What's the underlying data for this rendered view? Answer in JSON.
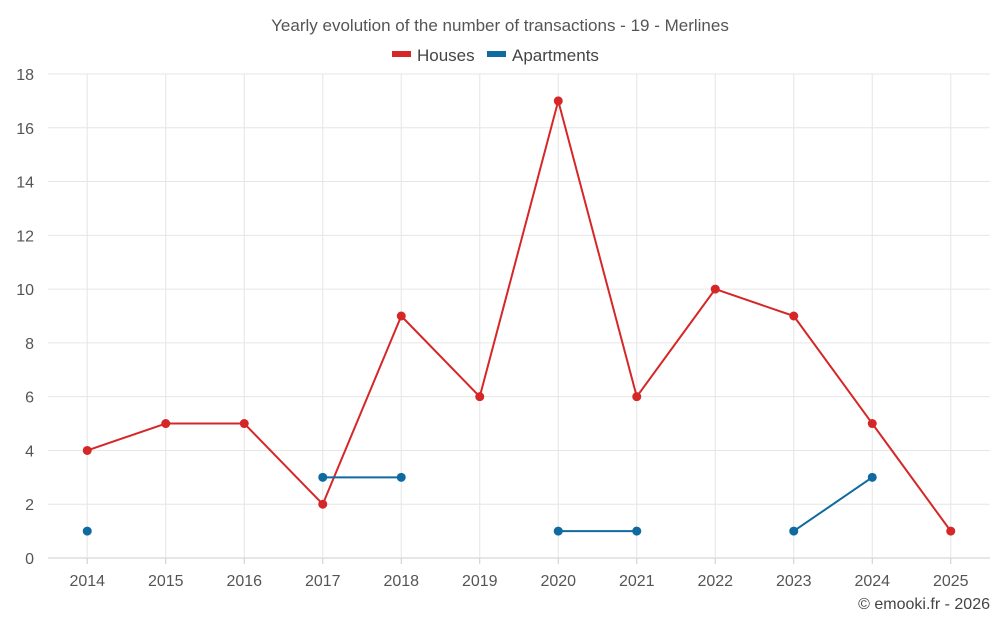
{
  "chart_data": {
    "type": "line",
    "title": "Yearly evolution of the number of transactions - 19 - Merlines",
    "categories": [
      "2014",
      "2015",
      "2016",
      "2017",
      "2018",
      "2019",
      "2020",
      "2021",
      "2022",
      "2023",
      "2024",
      "2025"
    ],
    "series": [
      {
        "name": "Houses",
        "color": "#d62728",
        "values": [
          4,
          5,
          5,
          2,
          9,
          6,
          17,
          6,
          10,
          9,
          5,
          1
        ]
      },
      {
        "name": "Apartments",
        "color": "#0f6a9f",
        "values": [
          1,
          null,
          null,
          3,
          3,
          null,
          1,
          1,
          null,
          1,
          3,
          null
        ]
      }
    ],
    "ylim": [
      0,
      18
    ],
    "yticks": [
      0,
      2,
      4,
      6,
      8,
      10,
      12,
      14,
      16,
      18
    ],
    "grid": true,
    "legend": "top-center",
    "xlabel": "",
    "ylabel": ""
  },
  "credit": "© emooki.fr - 2026"
}
